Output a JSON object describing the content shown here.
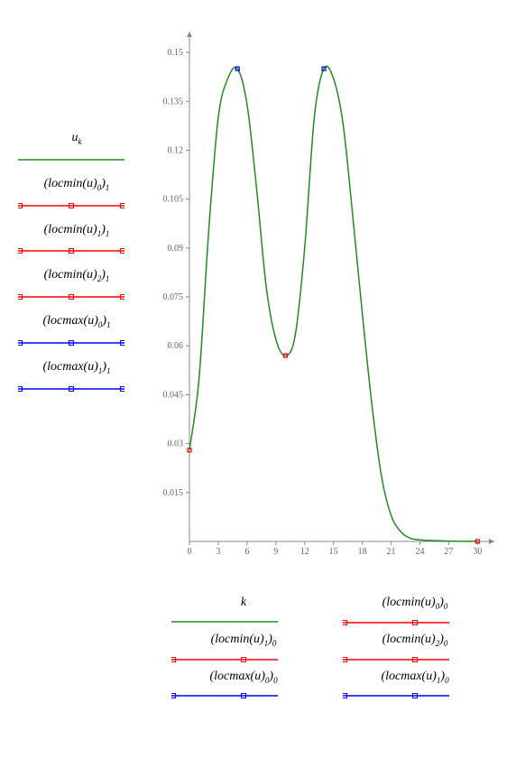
{
  "chart": {
    "type": "line",
    "background_color": "#ffffff",
    "axis_color": "#888888",
    "grid_color": "#888888",
    "tick_fontsize": 10,
    "x_axis": {
      "min": 0,
      "max": 31,
      "ticks": [
        0,
        3,
        6,
        9,
        12,
        15,
        18,
        21,
        24,
        27,
        30
      ]
    },
    "y_axis": {
      "min": 0,
      "max": 0.155,
      "ticks": [
        0.015,
        0.03,
        0.045,
        0.06,
        0.075,
        0.09,
        0.105,
        0.12,
        0.135,
        0.15
      ]
    },
    "series_main": {
      "color": "#228b22",
      "line_width": 1.5,
      "x": [
        0,
        1,
        2,
        3,
        4,
        5,
        6,
        7,
        8,
        9,
        10,
        11,
        12,
        13,
        14,
        15,
        16,
        17,
        18,
        19,
        20,
        21,
        22,
        23,
        24,
        25,
        26,
        27,
        28,
        29,
        30
      ],
      "y": [
        0.028,
        0.05,
        0.095,
        0.13,
        0.142,
        0.145,
        0.134,
        0.108,
        0.078,
        0.062,
        0.057,
        0.063,
        0.09,
        0.13,
        0.145,
        0.142,
        0.128,
        0.1,
        0.07,
        0.042,
        0.02,
        0.008,
        0.003,
        0.001,
        0.0005,
        0.0003,
        0.0002,
        0.0001,
        5e-05,
        3e-05,
        2e-05
      ]
    },
    "locmin_points": {
      "color": "#ff0000",
      "marker_size": 4,
      "points": [
        {
          "x": 0,
          "y": 0.028
        },
        {
          "x": 10,
          "y": 0.057
        },
        {
          "x": 30,
          "y": 2e-05
        }
      ]
    },
    "locmax_points": {
      "color": "#0000ff",
      "marker_size": 4,
      "points": [
        {
          "x": 5,
          "y": 0.145
        },
        {
          "x": 14,
          "y": 0.145
        }
      ]
    }
  },
  "left_legend": {
    "items": [
      {
        "label_main": "u",
        "label_sub": "k",
        "color": "#228b22",
        "has_markers": false
      },
      {
        "label_pre": "locmin",
        "label_arg": "u",
        "label_sub1": "0",
        "label_sub2": "1",
        "color": "#ff0000",
        "has_markers": true
      },
      {
        "label_pre": "locmin",
        "label_arg": "u",
        "label_sub1": "1",
        "label_sub2": "1",
        "color": "#ff0000",
        "has_markers": true
      },
      {
        "label_pre": "locmin",
        "label_arg": "u",
        "label_sub1": "2",
        "label_sub2": "1",
        "color": "#ff0000",
        "has_markers": true
      },
      {
        "label_pre": "locmax",
        "label_arg": "u",
        "label_sub1": "0",
        "label_sub2": "1",
        "color": "#0000ff",
        "has_markers": true
      },
      {
        "label_pre": "locmax",
        "label_arg": "u",
        "label_sub1": "1",
        "label_sub2": "1",
        "color": "#0000ff",
        "has_markers": true
      }
    ]
  },
  "bottom_legend": {
    "rows": [
      [
        {
          "label_main": "k",
          "color": "#228b22",
          "has_markers": false,
          "is_simple": true
        },
        {
          "label_pre": "locmin",
          "label_arg": "u",
          "label_sub1": "0",
          "label_sub2": "0",
          "color": "#ff0000",
          "has_markers": true
        }
      ],
      [
        {
          "label_pre": "locmin",
          "label_arg": "u",
          "label_sub1": "1",
          "label_sub2": "0",
          "color": "#ff0000",
          "has_markers": true
        },
        {
          "label_pre": "locmin",
          "label_arg": "u",
          "label_sub1": "2",
          "label_sub2": "0",
          "color": "#ff0000",
          "has_markers": true
        }
      ],
      [
        {
          "label_pre": "locmax",
          "label_arg": "u",
          "label_sub1": "0",
          "label_sub2": "0",
          "color": "#0000ff",
          "has_markers": true
        },
        {
          "label_pre": "locmax",
          "label_arg": "u",
          "label_sub1": "1",
          "label_sub2": "0",
          "color": "#0000ff",
          "has_markers": true
        }
      ]
    ]
  }
}
